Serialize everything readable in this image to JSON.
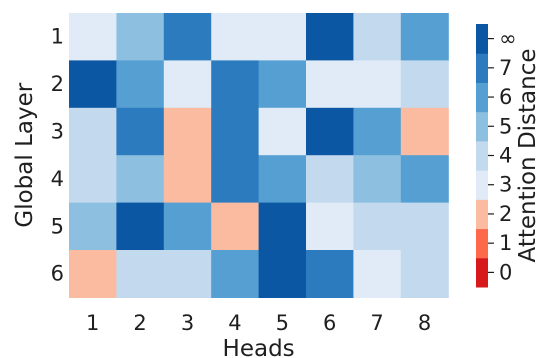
{
  "chart_data": {
    "type": "heatmap",
    "title": "",
    "xlabel": "Heads",
    "ylabel": "Global Layer",
    "x_categories": [
      "1",
      "2",
      "3",
      "4",
      "5",
      "6",
      "7",
      "8"
    ],
    "y_categories": [
      "1",
      "2",
      "3",
      "4",
      "5",
      "6"
    ],
    "values": [
      [
        "3",
        "5",
        "7",
        "3",
        "3",
        "∞",
        "4",
        "6"
      ],
      [
        "∞",
        "6",
        "3",
        "7",
        "6",
        "3",
        "3",
        "4"
      ],
      [
        "4",
        "7",
        "2",
        "7",
        "3",
        "∞",
        "6",
        "2"
      ],
      [
        "4",
        "5",
        "2",
        "7",
        "6",
        "4",
        "5",
        "6"
      ],
      [
        "5",
        "∞",
        "6",
        "2",
        "∞",
        "3",
        "4",
        "4"
      ],
      [
        "2",
        "4",
        "4",
        "6",
        "∞",
        "7",
        "3",
        "4"
      ]
    ],
    "colorbar": {
      "label": "Attention Distance",
      "levels": [
        "0",
        "1",
        "2",
        "3",
        "4",
        "5",
        "6",
        "7",
        "∞"
      ],
      "colors": {
        "0": "#d7191c",
        "1": "#fc6a4b",
        "2": "#fbbba1",
        "3": "#e0ebf7",
        "4": "#c3d9ee",
        "5": "#8dc0e0",
        "6": "#559fd2",
        "7": "#2b7bbe",
        "∞": "#0b57a4"
      }
    }
  }
}
